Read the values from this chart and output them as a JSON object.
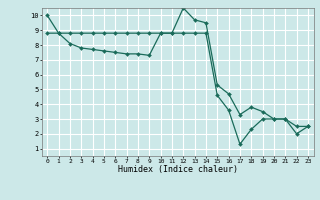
{
  "xlabel": "Humidex (Indice chaleur)",
  "bg_color": "#cce8e8",
  "grid_color": "#ffffff",
  "line_color": "#1a6b5a",
  "xlim": [
    -0.5,
    23.5
  ],
  "ylim": [
    0.5,
    10.5
  ],
  "xticks": [
    0,
    1,
    2,
    3,
    4,
    5,
    6,
    7,
    8,
    9,
    10,
    11,
    12,
    13,
    14,
    15,
    16,
    17,
    18,
    19,
    20,
    21,
    22,
    23
  ],
  "yticks": [
    1,
    2,
    3,
    4,
    5,
    6,
    7,
    8,
    9,
    10
  ],
  "line1_x": [
    0,
    1,
    2,
    3,
    4,
    5,
    6,
    7,
    8,
    9,
    10,
    11,
    12,
    13,
    14,
    15,
    16,
    17,
    18,
    19,
    20,
    21,
    22,
    23
  ],
  "line1_y": [
    10,
    8.8,
    8.1,
    7.8,
    7.7,
    7.6,
    7.5,
    7.4,
    7.4,
    7.3,
    8.8,
    8.8,
    10.5,
    9.7,
    9.5,
    5.3,
    4.7,
    3.3,
    3.8,
    3.5,
    3.0,
    3.0,
    2.5,
    2.5
  ],
  "line2_x": [
    0,
    1,
    2,
    3,
    4,
    5,
    6,
    7,
    8,
    9,
    10,
    11,
    12,
    13,
    14,
    15,
    16,
    17,
    18,
    19,
    20,
    21,
    22,
    23
  ],
  "line2_y": [
    8.8,
    8.8,
    8.8,
    8.8,
    8.8,
    8.8,
    8.8,
    8.8,
    8.8,
    8.8,
    8.8,
    8.8,
    8.8,
    8.8,
    8.8,
    4.6,
    3.6,
    1.3,
    2.3,
    3.0,
    3.0,
    3.0,
    2.0,
    2.5
  ]
}
